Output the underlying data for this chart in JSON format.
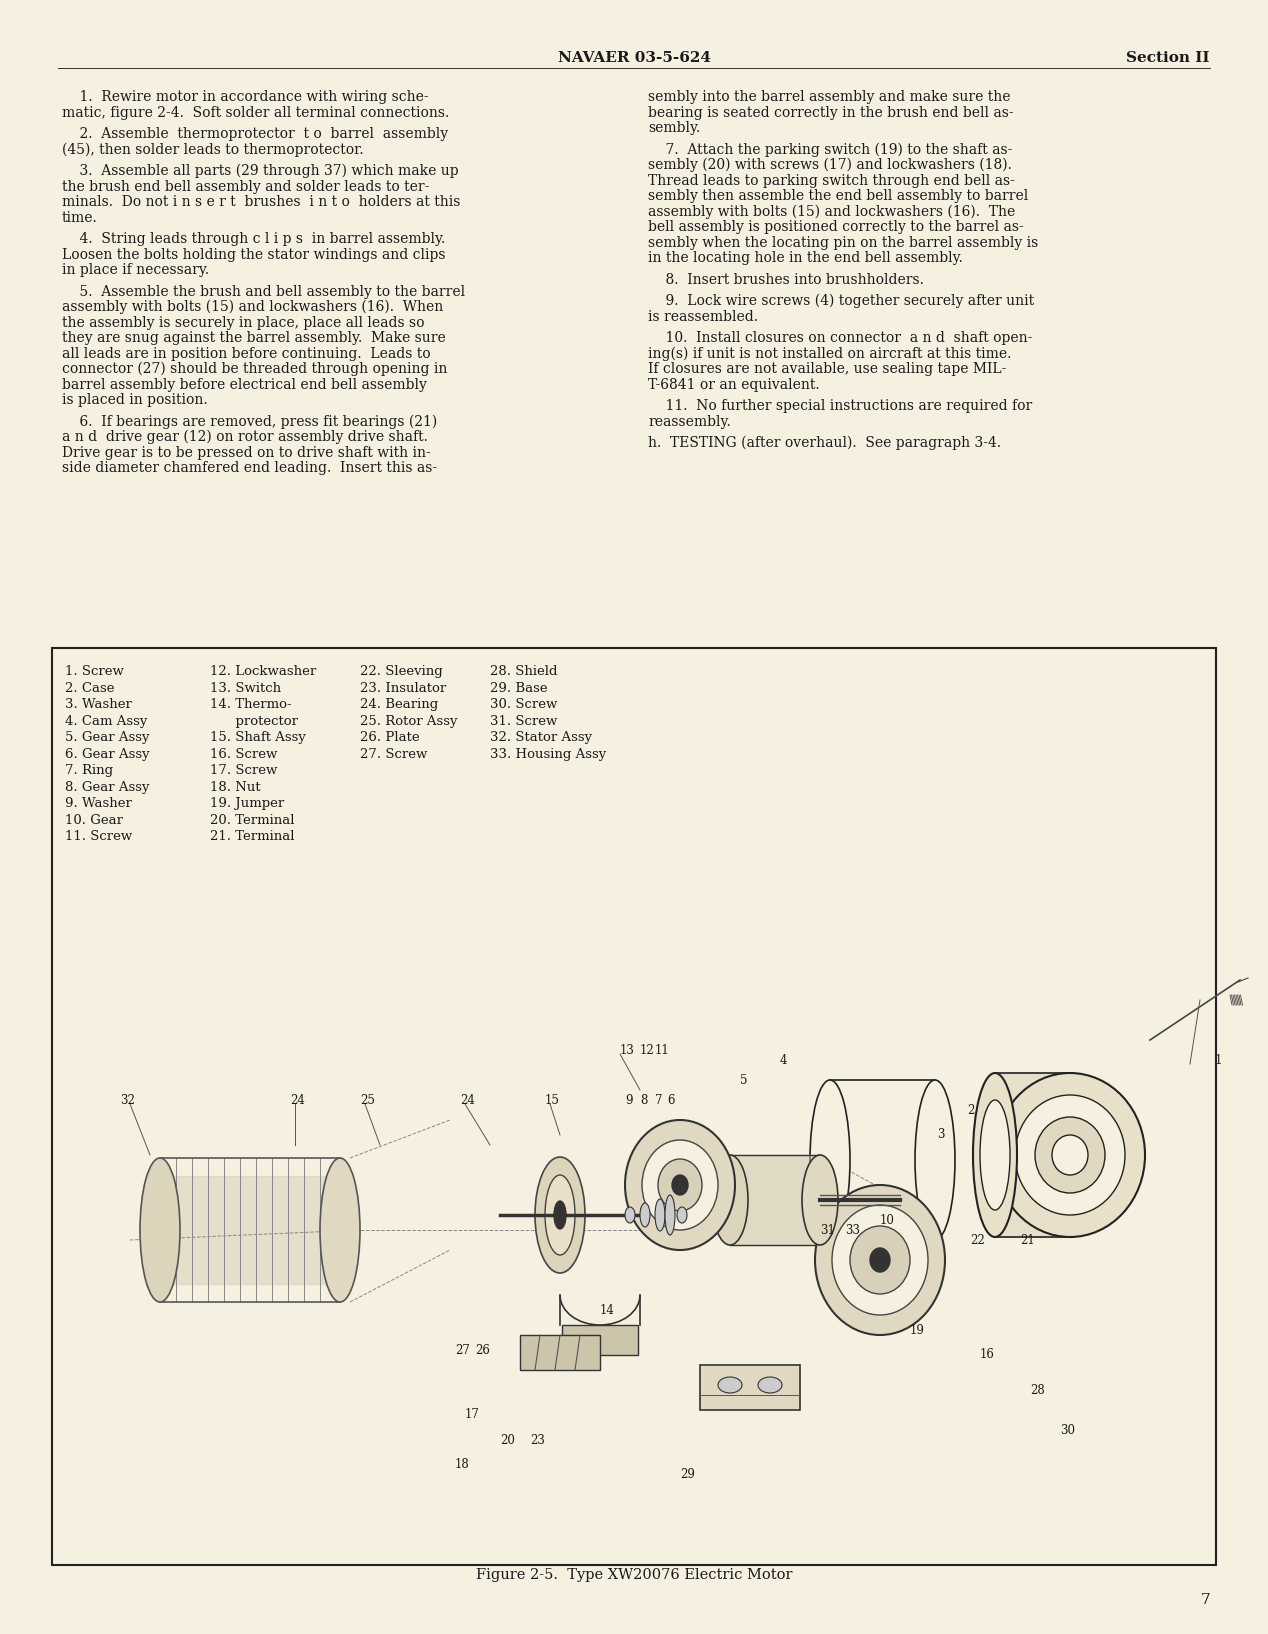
{
  "bg_color": "#f5f0e0",
  "header_center": "NAVAER 03-5-624",
  "header_right": "Section II",
  "page_number": "7",
  "figure_caption": "Figure 2-5.  Type XW20076 Electric Motor",
  "left_col_paragraphs": [
    "    1.  Rewire motor in accordance with wiring sche-\nmatic, figure 2-4.  Soft solder all terminal connections.",
    "    2.  Assemble  thermoprotector  t o  barrel  assembly\n(45), then solder leads to thermoprotector.",
    "    3.  Assemble all parts (29 through 37) which make up\nthe brush end bell assembly and solder leads to ter-\nminals.  Do not i n s e r t  brushes  i n t o  holders at this\ntime.",
    "    4.  String leads through c l i p s  in barrel assembly.\nLoosen the bolts holding the stator windings and clips\nin place if necessary.",
    "    5.  Assemble the brush and bell assembly to the barrel\nassembly with bolts (15) and lockwashers (16).  When\nthe assembly is securely in place, place all leads so\nthey are snug against the barrel assembly.  Make sure\nall leads are in position before continuing.  Leads to\nconnector (27) should be threaded through opening in\nbarrel assembly before electrical end bell assembly\nis placed in position.",
    "    6.  If bearings are removed, press fit bearings (21)\na n d  drive gear (12) on rotor assembly drive shaft.\nDrive gear is to be pressed on to drive shaft with in-\nside diameter chamfered end leading.  Insert this as-"
  ],
  "right_col_paragraphs": [
    "sembly into the barrel assembly and make sure the\nbearing is seated correctly in the brush end bell as-\nsembly.",
    "    7.  Attach the parking switch (19) to the shaft as-\nsembly (20) with screws (17) and lockwashers (18).\nThread leads to parking switch through end bell as-\nsembly then assemble the end bell assembly to barrel\nassembly with bolts (15) and lockwashers (16).  The\nbell assembly is positioned correctly to the barrel as-\nsembly when the locating pin on the barrel assembly is\nin the locating hole in the end bell assembly.",
    "    8.  Insert brushes into brushholders.",
    "    9.  Lock wire screws (4) together securely after unit\nis reassembled.",
    "    10.  Install closures on connector  a n d  shaft open-\ning(s) if unit is not installed on aircraft at this time.\nIf closures are not available, use sealing tape MIL-\nT-6841 or an equivalent.",
    "    11.  No further special instructions are required for\nreassembly.",
    "h.  TESTING (after overhaul).  See paragraph 3-4."
  ],
  "legend_col1": [
    "1. Screw",
    "2. Case",
    "3. Washer",
    "4. Cam Assy",
    "5. Gear Assy",
    "6. Gear Assy",
    "7. Ring",
    "8. Gear Assy",
    "9. Washer",
    "10. Gear",
    "11. Screw"
  ],
  "legend_col2": [
    "12. Lockwasher",
    "13. Switch",
    "14. Thermo-",
    "      protector",
    "15. Shaft Assy",
    "16. Screw",
    "17. Screw",
    "18. Nut",
    "19. Jumper",
    "20. Terminal",
    "21. Terminal"
  ],
  "legend_col3": [
    "22. Sleeving",
    "23. Insulator",
    "24. Bearing",
    "25. Rotor Assy",
    "26. Plate",
    "27. Screw"
  ],
  "legend_col4": [
    "28. Shield",
    "29. Base",
    "30. Screw",
    "31. Screw",
    "32. Stator Assy",
    "33. Housing Assy"
  ]
}
